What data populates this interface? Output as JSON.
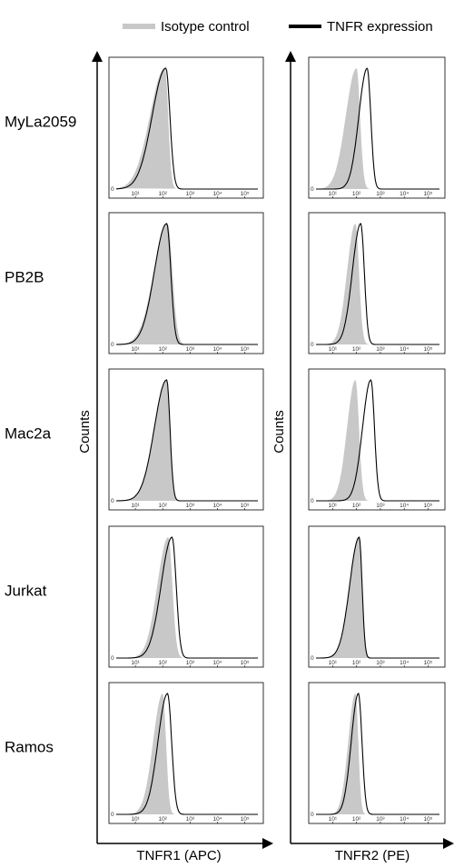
{
  "legend": [
    {
      "name": "Isotype control",
      "color": "#c8c8c8"
    },
    {
      "name": "TNFR expression",
      "color": "#000000"
    }
  ],
  "y_label": "Counts",
  "rows": [
    "MyLa2059",
    "PB2B",
    "Mac2a",
    "Jurkat",
    "Ramos"
  ],
  "columns": [
    {
      "x_label": "TNFR1 (APC)"
    },
    {
      "x_label": "TNFR2 (PE)"
    }
  ],
  "xscale": "log",
  "xlim": [
    2,
    300000
  ],
  "xticks": [
    {
      "value": 10,
      "label": "10¹"
    },
    {
      "value": 100,
      "label": "10²"
    },
    {
      "value": 1000,
      "label": "10³"
    },
    {
      "value": 10000,
      "label": "10⁴"
    },
    {
      "value": 100000,
      "label": "10⁵"
    }
  ],
  "yticks": [
    0
  ],
  "chart_data": [
    {
      "type": "histogram",
      "row": 0,
      "column": 0,
      "series": [
        {
          "mode": 120,
          "spread_left": 0.55,
          "spread_right": 0.12
        },
        {
          "mode": 130,
          "spread_left": 0.5,
          "spread_right": 0.15
        }
      ]
    },
    {
      "type": "histogram",
      "row": 0,
      "column": 1,
      "series": [
        {
          "mode": 100,
          "spread_left": 0.45,
          "spread_right": 0.15
        },
        {
          "mode": 280,
          "spread_left": 0.35,
          "spread_right": 0.15
        }
      ]
    },
    {
      "type": "histogram",
      "row": 1,
      "column": 0,
      "series": [
        {
          "mode": 150,
          "spread_left": 0.5,
          "spread_right": 0.18
        },
        {
          "mode": 140,
          "spread_left": 0.45,
          "spread_right": 0.15
        }
      ]
    },
    {
      "type": "histogram",
      "row": 1,
      "column": 1,
      "series": [
        {
          "mode": 90,
          "spread_left": 0.35,
          "spread_right": 0.15
        },
        {
          "mode": 150,
          "spread_left": 0.35,
          "spread_right": 0.15
        }
      ]
    },
    {
      "type": "histogram",
      "row": 2,
      "column": 0,
      "series": [
        {
          "mode": 140,
          "spread_left": 0.45,
          "spread_right": 0.12
        },
        {
          "mode": 140,
          "spread_left": 0.45,
          "spread_right": 0.12
        }
      ]
    },
    {
      "type": "histogram",
      "row": 2,
      "column": 1,
      "series": [
        {
          "mode": 90,
          "spread_left": 0.35,
          "spread_right": 0.15
        },
        {
          "mode": 400,
          "spread_left": 0.35,
          "spread_right": 0.15
        }
      ]
    },
    {
      "type": "histogram",
      "row": 3,
      "column": 0,
      "series": [
        {
          "mode": 160,
          "spread_left": 0.4,
          "spread_right": 0.15
        },
        {
          "mode": 220,
          "spread_left": 0.4,
          "spread_right": 0.15
        }
      ]
    },
    {
      "type": "histogram",
      "row": 3,
      "column": 1,
      "series": [
        {
          "mode": 130,
          "spread_left": 0.4,
          "spread_right": 0.12
        },
        {
          "mode": 130,
          "spread_left": 0.4,
          "spread_right": 0.12
        }
      ]
    },
    {
      "type": "histogram",
      "row": 4,
      "column": 0,
      "series": [
        {
          "mode": 100,
          "spread_left": 0.35,
          "spread_right": 0.12
        },
        {
          "mode": 150,
          "spread_left": 0.35,
          "spread_right": 0.15
        }
      ]
    },
    {
      "type": "histogram",
      "row": 4,
      "column": 1,
      "series": [
        {
          "mode": 90,
          "spread_left": 0.3,
          "spread_right": 0.12
        },
        {
          "mode": 120,
          "spread_left": 0.3,
          "spread_right": 0.15
        }
      ]
    }
  ]
}
